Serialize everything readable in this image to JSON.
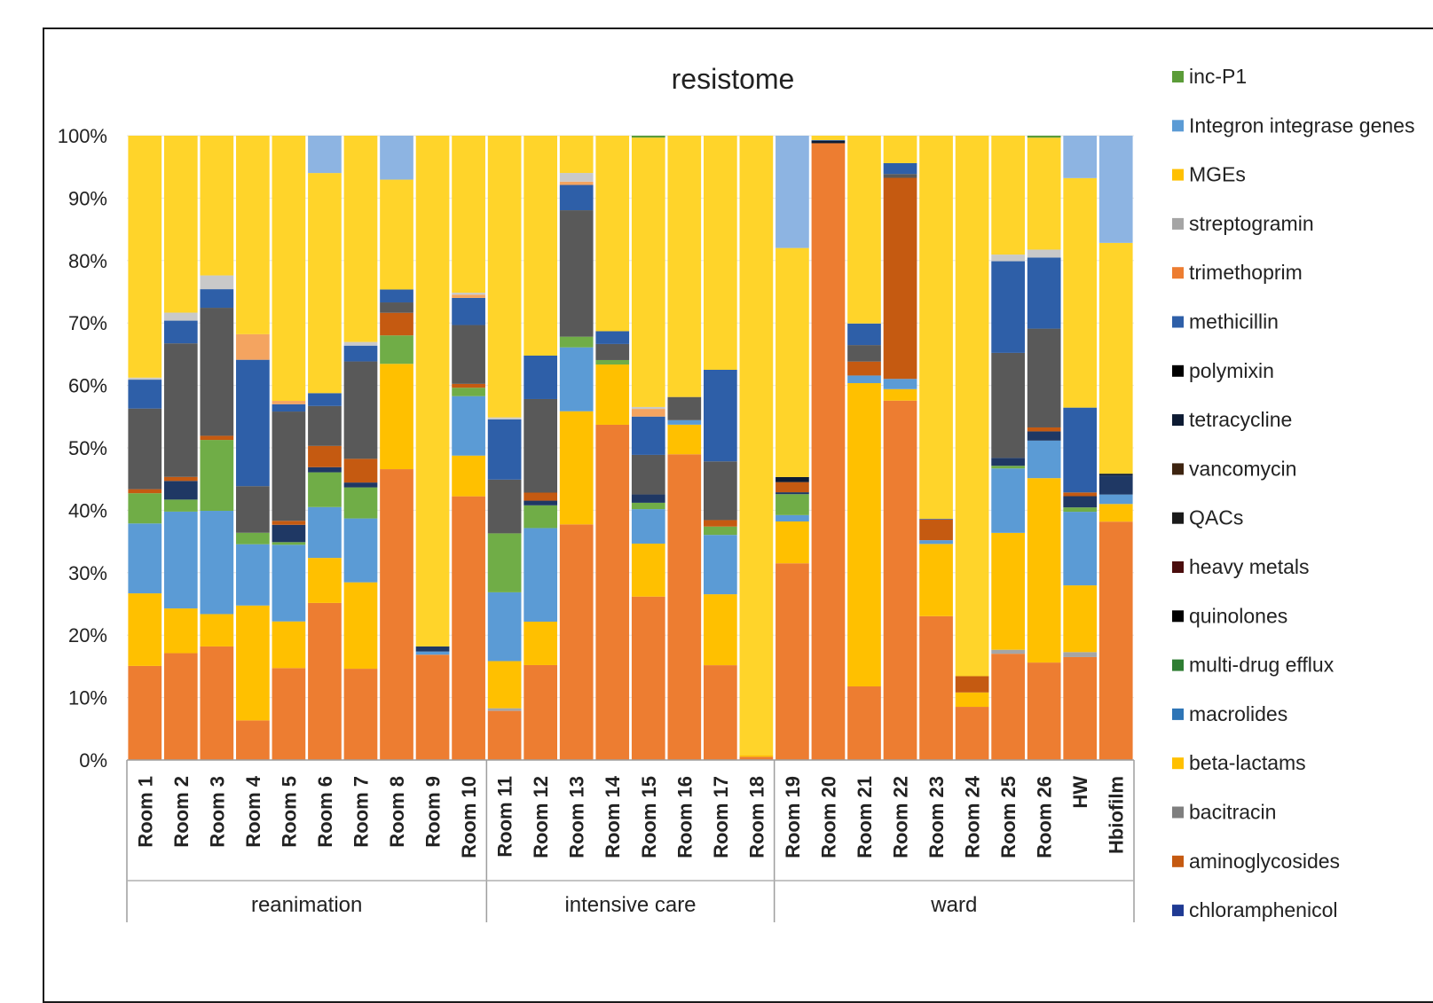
{
  "chart_data": {
    "type": "bar",
    "stacked": true,
    "percent": true,
    "title": "resistome",
    "xlabel": "",
    "ylabel": "",
    "ylim": [
      0,
      100
    ],
    "y_ticks": [
      "0%",
      "10%",
      "20%",
      "30%",
      "40%",
      "50%",
      "60%",
      "70%",
      "80%",
      "90%",
      "100%"
    ],
    "categories": [
      "Room 1",
      "Room 2",
      "Room 3",
      "Room 4",
      "Room 5",
      "Room 6",
      "Room 7",
      "Room 8",
      "Room 9",
      "Room 10",
      "Room 11",
      "Room 12",
      "Room 13",
      "Room 14",
      "Room 15",
      "Room 16",
      "Room 17",
      "Room 18",
      "Room 19",
      "Room 20",
      "Room 21",
      "Room 22",
      "Room 23",
      "Room 24",
      "Room 25",
      "Room 26",
      "HW",
      "Hbiofilm"
    ],
    "groups": [
      {
        "label": "reanimation",
        "count": 10
      },
      {
        "label": "intensive care",
        "count": 8
      },
      {
        "label": "ward",
        "count": 10
      }
    ],
    "legend_position": "right",
    "series": [
      {
        "name": "aminoglycosides",
        "color": "#ED7D31",
        "values": [
          14,
          16,
          16.5,
          6.2,
          13.8,
          24.4,
          15,
          45,
          16.6,
          40.8,
          7.5,
          14.2,
          35.4,
          52.3,
          25.6,
          47.5,
          14.7,
          0.5,
          31,
          98.5,
          11.6,
          56.3,
          22.9,
          8.5,
          16,
          14.8,
          16.5,
          37.8
        ]
      },
      {
        "name": "bacitracin",
        "color": "#A5A5A5",
        "values": [
          0,
          0,
          0,
          0,
          0,
          0,
          0,
          0,
          0,
          0,
          0.4,
          0,
          0,
          0,
          0,
          0,
          0,
          0,
          0,
          0,
          0,
          0,
          0,
          0,
          0.6,
          0,
          0.8,
          0
        ]
      },
      {
        "name": "beta-lactams",
        "color": "#FFC000",
        "values": [
          10.8,
          6.7,
          4.7,
          18,
          7,
          7,
          14.2,
          16.3,
          0,
          6.3,
          7.2,
          6.5,
          17,
          9.4,
          8.3,
          4.6,
          11,
          0.3,
          6.6,
          0,
          47.8,
          1.8,
          11.5,
          2.3,
          17.6,
          28,
          10.7,
          2.8
        ]
      },
      {
        "name": "macrolides",
        "color": "#5B9BD5",
        "values": [
          10.4,
          14.5,
          15,
          9.6,
          11.5,
          7.9,
          10.5,
          0,
          0.5,
          9.2,
          10.5,
          14,
          9.6,
          0,
          5.4,
          0.7,
          9.2,
          0,
          1,
          0,
          1.2,
          1.6,
          0.6,
          0,
          9.7,
          5.7,
          11.8,
          1.5
        ]
      },
      {
        "name": "multi-drug efflux",
        "color": "#70AD47",
        "values": [
          4.5,
          1.8,
          10.3,
          1.8,
          0.4,
          5.4,
          5.1,
          4.4,
          0,
          1.3,
          9,
          3.4,
          1.6,
          0.7,
          1,
          0,
          1.3,
          0,
          3.3,
          0,
          0,
          0,
          0,
          0,
          0.4,
          0,
          0.7,
          0
        ]
      },
      {
        "name": "quinolones",
        "color": "#1F3864",
        "values": [
          0,
          2.8,
          0,
          0,
          2.6,
          0.8,
          0.8,
          0,
          0.8,
          0,
          0,
          0.7,
          0,
          0,
          1.3,
          0,
          0,
          0,
          0.3,
          0,
          0,
          0,
          0,
          0,
          1.2,
          1.4,
          1.8,
          3
        ]
      },
      {
        "name": "heavy metals",
        "color": "#C55A11",
        "values": [
          0.6,
          0.6,
          0.6,
          0,
          0.6,
          3.3,
          3.9,
          3.5,
          0,
          0.6,
          0,
          1.2,
          0,
          0,
          0,
          0,
          1,
          0,
          1.6,
          0,
          2.2,
          31.5,
          3.3,
          2.6,
          0,
          0.6,
          0.6,
          0
        ]
      },
      {
        "name": "QACs",
        "color": "#595959",
        "values": [
          12,
          20,
          18.6,
          7.3,
          16.4,
          6.2,
          16,
          1.6,
          0,
          9.1,
          8.2,
          14,
          19,
          2.5,
          6.2,
          3.6,
          9.1,
          0,
          0,
          0,
          2.6,
          0.6,
          0,
          0,
          15.8,
          15,
          0,
          0
        ]
      },
      {
        "name": "vancomycin",
        "color": "#843C0C",
        "values": [
          0,
          0,
          0,
          0,
          0,
          0,
          0,
          0,
          0,
          0,
          0,
          0,
          0,
          0,
          0,
          0,
          0,
          0,
          0,
          0,
          0,
          0,
          0,
          0,
          0,
          0,
          0,
          0
        ]
      },
      {
        "name": "tetracycline",
        "color": "#0D1B33",
        "values": [
          0,
          0,
          0,
          0,
          0,
          0,
          0,
          0,
          0,
          0,
          0,
          0,
          0,
          0,
          0,
          0,
          0,
          0,
          0.8,
          0.4,
          0,
          0,
          0,
          0,
          0,
          0,
          0,
          0.3
        ]
      },
      {
        "name": "polymixin",
        "color": "#000000",
        "values": [
          0,
          0,
          0,
          0,
          0,
          0,
          0,
          0,
          0,
          0,
          0,
          0,
          0,
          0,
          0,
          0,
          0,
          0,
          0,
          0,
          0,
          0,
          0,
          0,
          0,
          0,
          0,
          0
        ]
      },
      {
        "name": "methicillin",
        "color": "#2E5FA8",
        "values": [
          4.3,
          3.4,
          2.7,
          19.8,
          1.1,
          2,
          2.6,
          2,
          0,
          4.2,
          9.2,
          6.5,
          3.8,
          2,
          6,
          0,
          14.2,
          0,
          0,
          0.1,
          3.4,
          1.7,
          0.1,
          0,
          13.8,
          10.8,
          13.6,
          0
        ]
      },
      {
        "name": "trimethoprim",
        "color": "#F4A460",
        "values": [
          0,
          0,
          0,
          4,
          0.5,
          0,
          0,
          0,
          0,
          0.5,
          0,
          0,
          0.5,
          0,
          1.2,
          0,
          0,
          0,
          0,
          0,
          0,
          0,
          0,
          0,
          0,
          0,
          0,
          0
        ]
      },
      {
        "name": "streptogramin",
        "color": "#C9C9C9",
        "values": [
          0.3,
          1.2,
          2,
          0,
          0,
          0,
          0.6,
          0,
          0,
          0.3,
          0.3,
          0,
          1.3,
          0,
          0.3,
          0,
          0,
          0,
          0,
          0,
          0,
          0,
          0,
          0,
          1,
          1.2,
          0,
          0
        ]
      },
      {
        "name": "MGEs",
        "color": "#FFD42A",
        "values": [
          36,
          26.5,
          20.3,
          31.1,
          39.8,
          34.2,
          33.9,
          17,
          80.5,
          24.3,
          43,
          32.9,
          5.6,
          30.5,
          42.2,
          40.6,
          36.3,
          97.4,
          36.1,
          0.7,
          29.6,
          4.3,
          61,
          86.4,
          17.9,
          17,
          36.8,
          36.6
        ]
      },
      {
        "name": "Integron integrase genes",
        "color": "#8DB4E2",
        "values": [
          0,
          0,
          0,
          0,
          0,
          5.8,
          0,
          6.8,
          0,
          0,
          0,
          0,
          0,
          0,
          0,
          0,
          0,
          0,
          17.7,
          0,
          0,
          0,
          0,
          0,
          0,
          0,
          6.8,
          17
        ]
      },
      {
        "name": "inc-P1",
        "color": "#5B9C38",
        "values": [
          0,
          0,
          0,
          0,
          0,
          0,
          0,
          0,
          0,
          0,
          0,
          0,
          0,
          0,
          0.3,
          0,
          0,
          0,
          0,
          0,
          0,
          0,
          0,
          0,
          0,
          0.3,
          0,
          0
        ]
      },
      {
        "name": "chloramphenicol",
        "color": "#1F3A93",
        "values": [
          0,
          0,
          0,
          0,
          0,
          0,
          0,
          0,
          0,
          0,
          0,
          0,
          0,
          0,
          0,
          0,
          0,
          0,
          0,
          0,
          0,
          0,
          0,
          0,
          0,
          0,
          0,
          0
        ]
      }
    ],
    "legend": [
      {
        "name": "inc-P1",
        "color": "#5B9C38"
      },
      {
        "name": "Integron integrase genes",
        "color": "#5B9BD5"
      },
      {
        "name": "MGEs",
        "color": "#FFC000"
      },
      {
        "name": "streptogramin",
        "color": "#A5A5A5"
      },
      {
        "name": "trimethoprim",
        "color": "#ED7D31"
      },
      {
        "name": "methicillin",
        "color": "#2E5FA8"
      },
      {
        "name": "polymixin",
        "color": "#000000"
      },
      {
        "name": "tetracycline",
        "color": "#0D1B33"
      },
      {
        "name": "vancomycin",
        "color": "#3D2410"
      },
      {
        "name": "QACs",
        "color": "#1A1A1A"
      },
      {
        "name": "heavy metals",
        "color": "#4A0D0D"
      },
      {
        "name": "quinolones",
        "color": "#000000"
      },
      {
        "name": "multi-drug efflux",
        "color": "#2E7D32"
      },
      {
        "name": "macrolides",
        "color": "#2E75B6"
      },
      {
        "name": "beta-lactams",
        "color": "#FFC000"
      },
      {
        "name": "bacitracin",
        "color": "#7F7F7F"
      },
      {
        "name": "aminoglycosides",
        "color": "#C55A11"
      },
      {
        "name": "chloramphenicol",
        "color": "#1F3A93"
      }
    ]
  }
}
